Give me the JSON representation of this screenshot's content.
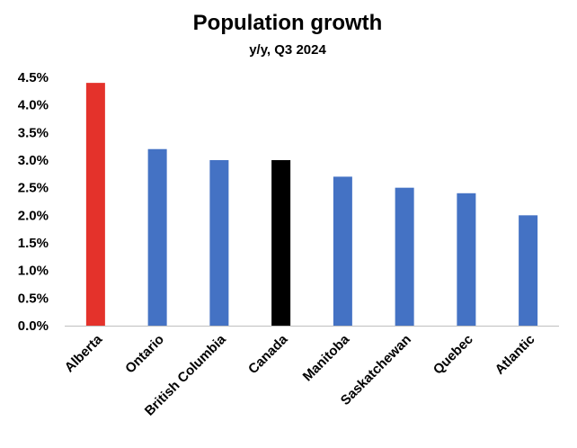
{
  "chart_data": {
    "type": "bar",
    "title": "Population growth",
    "subtitle": "y/y, Q3 2024",
    "xlabel": "",
    "ylabel": "",
    "ylim": [
      0,
      4.5
    ],
    "yticks": [
      "0.0%",
      "0.5%",
      "1.0%",
      "1.5%",
      "2.0%",
      "2.5%",
      "3.0%",
      "3.5%",
      "4.0%",
      "4.5%"
    ],
    "grid": false,
    "categories": [
      "Alberta",
      "Ontario",
      "British Columbia",
      "Canada",
      "Manitoba",
      "Saskatchewan",
      "Quebec",
      "Atlantic"
    ],
    "values": [
      4.4,
      3.2,
      3.0,
      3.0,
      2.7,
      2.5,
      2.4,
      2.0
    ],
    "colors": [
      "#e4322b",
      "#4472c4",
      "#4472c4",
      "#000000",
      "#4472c4",
      "#4472c4",
      "#4472c4",
      "#4472c4"
    ]
  }
}
